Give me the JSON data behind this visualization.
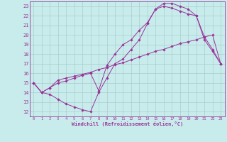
{
  "bg_color": "#c8ecec",
  "line_color": "#993399",
  "grid_color": "#aacccc",
  "xlim": [
    -0.5,
    23.5
  ],
  "ylim": [
    11.5,
    23.5
  ],
  "yticks": [
    12,
    13,
    14,
    15,
    16,
    17,
    18,
    19,
    20,
    21,
    22,
    23
  ],
  "xticks": [
    0,
    1,
    2,
    3,
    4,
    5,
    6,
    7,
    8,
    9,
    10,
    11,
    12,
    13,
    14,
    15,
    16,
    17,
    18,
    19,
    20,
    21,
    22,
    23
  ],
  "xlabel": "Windchill (Refroidissement éolien,°C)",
  "line1_x": [
    0,
    1,
    2,
    3,
    4,
    5,
    6,
    7,
    8,
    9,
    10,
    11,
    12,
    13,
    14,
    15,
    16,
    17,
    18,
    19,
    20,
    21,
    22,
    23
  ],
  "line1_y": [
    15.0,
    14.0,
    13.8,
    13.3,
    12.8,
    12.5,
    12.2,
    12.0,
    14.0,
    15.5,
    17.0,
    17.5,
    18.5,
    19.5,
    21.2,
    22.7,
    23.3,
    23.3,
    23.0,
    22.7,
    22.0,
    19.5,
    18.3,
    17.0
  ],
  "line2_x": [
    0,
    1,
    2,
    3,
    4,
    5,
    6,
    7,
    8,
    9,
    10,
    11,
    12,
    13,
    14,
    15,
    16,
    17,
    18,
    19,
    20,
    21,
    22,
    23
  ],
  "line2_y": [
    15.0,
    14.0,
    14.5,
    15.3,
    15.5,
    15.7,
    15.9,
    16.1,
    16.4,
    16.6,
    16.9,
    17.1,
    17.4,
    17.7,
    18.0,
    18.3,
    18.5,
    18.8,
    19.1,
    19.3,
    19.5,
    19.8,
    20.0,
    17.0
  ],
  "line3_x": [
    0,
    1,
    2,
    3,
    4,
    5,
    6,
    7,
    8,
    9,
    10,
    11,
    12,
    13,
    14,
    15,
    16,
    17,
    18,
    19,
    20,
    21,
    22,
    23
  ],
  "line3_y": [
    15.0,
    14.0,
    14.5,
    15.0,
    15.2,
    15.5,
    15.8,
    16.0,
    14.2,
    16.8,
    18.0,
    19.0,
    19.5,
    20.5,
    21.3,
    22.7,
    23.0,
    22.8,
    22.5,
    22.2,
    22.0,
    19.8,
    18.5,
    17.0
  ]
}
